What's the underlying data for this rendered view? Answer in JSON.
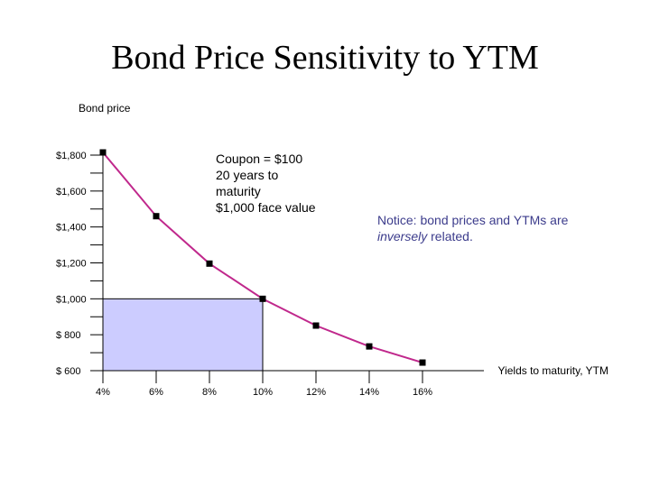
{
  "title": "Bond Price Sensitivity to YTM",
  "annotations": {
    "coupon_lines": [
      "Coupon = $100",
      "20 years to",
      "maturity",
      "$1,000 face value"
    ],
    "notice_before": "Notice: bond prices and YTMs are",
    "notice_emph": "inversely",
    "notice_after": " related."
  },
  "chart_data": {
    "type": "line",
    "ylabel": "Bond price",
    "xlabel": "Yields to maturity, YTM",
    "x_ticks": [
      "4%",
      "6%",
      "8%",
      "10%",
      "12%",
      "14%",
      "16%"
    ],
    "y_ticks": [
      "$1,800",
      "$1,600",
      "$1,400",
      "$1,200",
      "$1,000",
      "$  800",
      "$  600"
    ],
    "y_tick_values": [
      1800,
      1600,
      1400,
      1200,
      1000,
      800,
      600
    ],
    "xlim": [
      4,
      16
    ],
    "ylim": [
      600,
      1800
    ],
    "series": [
      {
        "x": [
          4,
          6,
          8,
          10,
          12,
          14,
          16
        ],
        "y": [
          1815,
          1460,
          1196,
          1000,
          851,
          735,
          645
        ]
      }
    ],
    "highlight_region": {
      "x": [
        4,
        10
      ],
      "y": [
        600,
        1000
      ]
    },
    "colors": {
      "line": "#c0288c",
      "marker": "#000000",
      "highlight": "#ccccff",
      "notice_text": "#3c3c8c"
    },
    "grid": false,
    "legend": "none"
  }
}
